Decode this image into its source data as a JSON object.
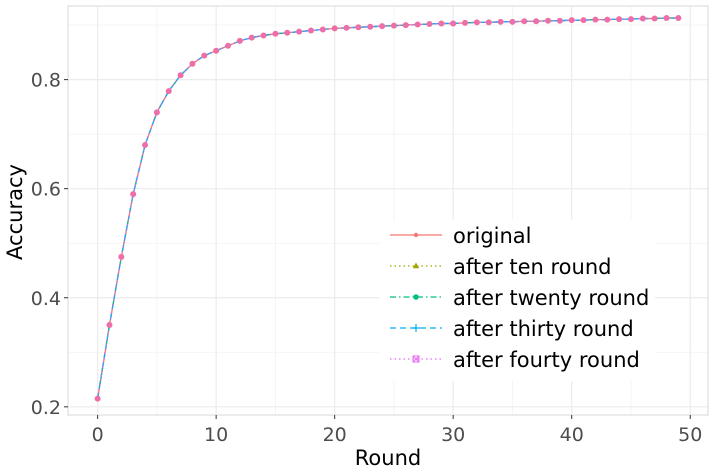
{
  "chart_data": {
    "type": "line",
    "title": "",
    "xlabel": "Round",
    "ylabel": "Accuracy",
    "xlim": [
      -2.5,
      51.5
    ],
    "ylim": [
      0.185,
      0.935
    ],
    "x_ticks": [
      0,
      10,
      20,
      30,
      40,
      50
    ],
    "y_ticks": [
      0.2,
      0.4,
      0.6,
      0.8
    ],
    "x_tick_labels": [
      "0",
      "10",
      "20",
      "30",
      "40",
      "50"
    ],
    "y_tick_labels": [
      "0.2",
      "0.4",
      "0.6",
      "0.8"
    ],
    "grid": true,
    "legend_position": "bottom-right",
    "x": [
      0,
      1,
      2,
      3,
      4,
      5,
      6,
      7,
      8,
      9,
      10,
      11,
      12,
      13,
      14,
      15,
      16,
      17,
      18,
      19,
      20,
      21,
      22,
      23,
      24,
      25,
      26,
      27,
      28,
      29,
      30,
      31,
      32,
      33,
      34,
      35,
      36,
      37,
      38,
      39,
      40,
      41,
      42,
      43,
      44,
      45,
      46,
      47,
      48,
      49
    ],
    "series": [
      {
        "name": "original",
        "color": "#F8766D",
        "dash": "solid",
        "marker": "circle",
        "values": [
          0.215,
          0.35,
          0.475,
          0.59,
          0.68,
          0.74,
          0.779,
          0.808,
          0.829,
          0.844,
          0.853,
          0.862,
          0.871,
          0.877,
          0.881,
          0.884,
          0.886,
          0.888,
          0.89,
          0.892,
          0.894,
          0.895,
          0.896,
          0.897,
          0.898,
          0.899,
          0.9,
          0.901,
          0.902,
          0.903,
          0.903,
          0.904,
          0.905,
          0.905,
          0.906,
          0.906,
          0.907,
          0.907,
          0.908,
          0.908,
          0.909,
          0.909,
          0.91,
          0.91,
          0.911,
          0.911,
          0.912,
          0.912,
          0.913,
          0.913
        ]
      },
      {
        "name": "after ten round",
        "color": "#A3A500",
        "dash": "dotted",
        "marker": "triangle",
        "values": [
          0.215,
          0.35,
          0.475,
          0.59,
          0.68,
          0.74,
          0.779,
          0.808,
          0.829,
          0.844,
          0.853,
          0.862,
          0.871,
          0.877,
          0.881,
          0.884,
          0.886,
          0.888,
          0.89,
          0.892,
          0.894,
          0.895,
          0.896,
          0.897,
          0.898,
          0.899,
          0.9,
          0.901,
          0.902,
          0.903,
          0.903,
          0.904,
          0.905,
          0.905,
          0.906,
          0.906,
          0.907,
          0.907,
          0.908,
          0.908,
          0.909,
          0.909,
          0.91,
          0.91,
          0.911,
          0.911,
          0.912,
          0.912,
          0.913,
          0.913
        ]
      },
      {
        "name": "after twenty round",
        "color": "#00BF7D",
        "dash": "dashdot",
        "marker": "circle-filled",
        "values": [
          0.215,
          0.35,
          0.475,
          0.59,
          0.68,
          0.74,
          0.779,
          0.808,
          0.829,
          0.844,
          0.853,
          0.862,
          0.871,
          0.877,
          0.881,
          0.884,
          0.886,
          0.888,
          0.89,
          0.892,
          0.894,
          0.895,
          0.896,
          0.897,
          0.898,
          0.899,
          0.9,
          0.901,
          0.902,
          0.903,
          0.903,
          0.904,
          0.905,
          0.905,
          0.906,
          0.906,
          0.907,
          0.907,
          0.908,
          0.908,
          0.909,
          0.909,
          0.91,
          0.91,
          0.911,
          0.911,
          0.912,
          0.912,
          0.913,
          0.913
        ]
      },
      {
        "name": "after thirty round",
        "color": "#00B0F6",
        "dash": "dashed",
        "marker": "plus",
        "values": [
          0.215,
          0.35,
          0.475,
          0.59,
          0.68,
          0.74,
          0.779,
          0.808,
          0.829,
          0.844,
          0.853,
          0.862,
          0.871,
          0.877,
          0.881,
          0.884,
          0.886,
          0.888,
          0.89,
          0.892,
          0.894,
          0.895,
          0.896,
          0.897,
          0.898,
          0.899,
          0.9,
          0.901,
          0.902,
          0.903,
          0.903,
          0.904,
          0.905,
          0.905,
          0.906,
          0.906,
          0.907,
          0.907,
          0.908,
          0.908,
          0.909,
          0.909,
          0.91,
          0.91,
          0.911,
          0.911,
          0.912,
          0.912,
          0.913,
          0.913
        ]
      },
      {
        "name": "after fourty round",
        "color": "#E76BF3",
        "dash": "dotted",
        "marker": "square-cross",
        "values": [
          0.215,
          0.35,
          0.475,
          0.59,
          0.68,
          0.74,
          0.779,
          0.808,
          0.829,
          0.844,
          0.853,
          0.862,
          0.871,
          0.877,
          0.881,
          0.884,
          0.886,
          0.888,
          0.89,
          0.892,
          0.894,
          0.895,
          0.896,
          0.897,
          0.898,
          0.899,
          0.9,
          0.901,
          0.902,
          0.903,
          0.903,
          0.904,
          0.905,
          0.905,
          0.906,
          0.906,
          0.907,
          0.907,
          0.908,
          0.908,
          0.909,
          0.909,
          0.91,
          0.91,
          0.911,
          0.911,
          0.912,
          0.912,
          0.913,
          0.913
        ]
      }
    ],
    "overlay_marker_color": "#EE6FA8"
  }
}
